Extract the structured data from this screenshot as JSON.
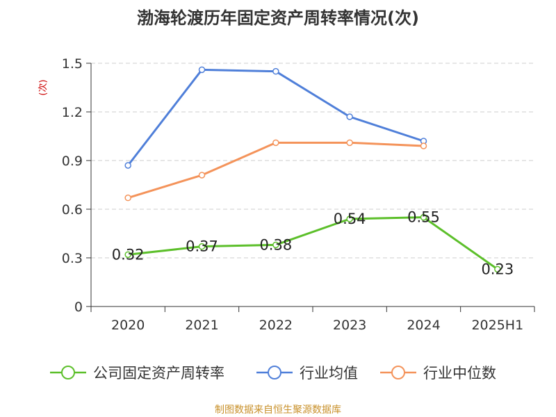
{
  "chart_data": {
    "type": "line",
    "title": "渤海轮渡历年固定资产周转率情况(次)",
    "ylabel": "(次)",
    "xlabel": "",
    "categories": [
      "2020",
      "2021",
      "2022",
      "2023",
      "2024",
      "2025H1"
    ],
    "ylim": [
      0,
      1.5
    ],
    "yticks": [
      0,
      0.3,
      0.6,
      0.9,
      1.2,
      1.5
    ],
    "ytick_labels": [
      "0",
      "0.3",
      "0.6",
      "0.9",
      "1.2",
      "1.5"
    ],
    "grid": true,
    "legend_position": "bottom",
    "series": [
      {
        "name": "公司固定资产周转率",
        "color": "#5cbf2a",
        "values": [
          0.32,
          0.37,
          0.38,
          0.54,
          0.55,
          0.23
        ],
        "data_labels": [
          "0.32",
          "0.37",
          "0.38",
          "0.54",
          "0.55",
          "0.23"
        ]
      },
      {
        "name": "行业均值",
        "color": "#4f7fd9",
        "values": [
          0.87,
          1.46,
          1.45,
          1.17,
          1.02,
          null
        ]
      },
      {
        "name": "行业中位数",
        "color": "#f4935a",
        "values": [
          0.67,
          0.81,
          1.01,
          1.01,
          0.99,
          null
        ]
      }
    ]
  },
  "footer": {
    "source": "制图数据来自恒生聚源数据库"
  }
}
